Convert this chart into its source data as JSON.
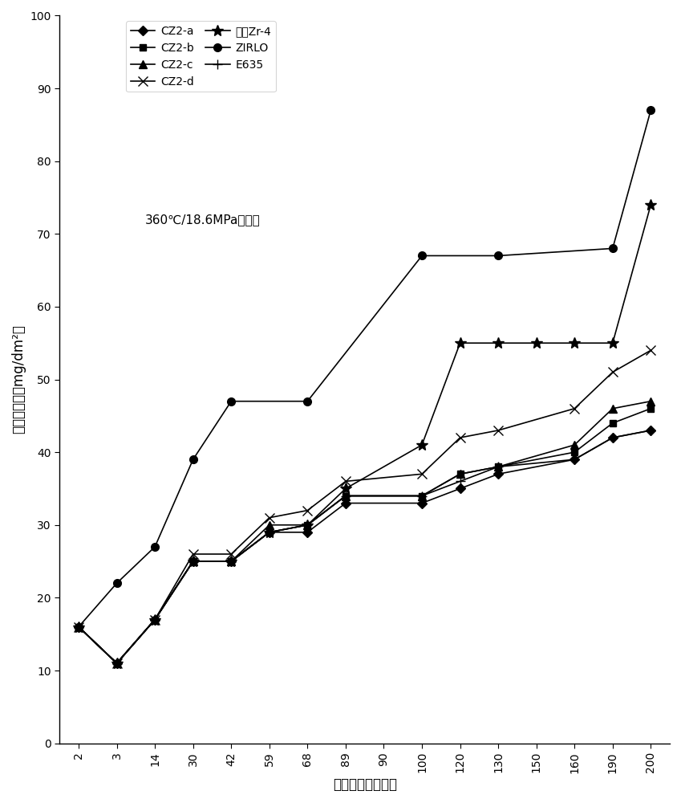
{
  "x_tick_labels": [
    "2",
    "3",
    "14",
    "30",
    "42",
    "59",
    "68",
    "89",
    "90",
    "100",
    "120",
    "130",
    "150",
    "160",
    "190",
    "200"
  ],
  "x_tick_values": [
    2,
    3,
    14,
    30,
    42,
    59,
    68,
    89,
    90,
    100,
    120,
    130,
    150,
    160,
    190,
    200
  ],
  "series": {
    "CZ2-a": {
      "x": [
        2,
        3,
        14,
        30,
        42,
        59,
        68,
        89,
        100,
        120,
        130,
        160,
        190,
        200
      ],
      "y": [
        16,
        11,
        17,
        25,
        25,
        29,
        29,
        33,
        33,
        35,
        37,
        39,
        42,
        43
      ],
      "marker": "D",
      "ms": 6
    },
    "CZ2-b": {
      "x": [
        2,
        3,
        14,
        30,
        42,
        59,
        68,
        89,
        100,
        120,
        130,
        160,
        190,
        200
      ],
      "y": [
        16,
        11,
        17,
        25,
        25,
        29,
        30,
        34,
        34,
        37,
        38,
        40,
        44,
        46
      ],
      "marker": "s",
      "ms": 6
    },
    "CZ2-c": {
      "x": [
        2,
        3,
        14,
        30,
        42,
        59,
        68,
        89,
        100,
        120,
        130,
        160,
        190,
        200
      ],
      "y": [
        16,
        11,
        17,
        25,
        25,
        30,
        30,
        34,
        34,
        37,
        38,
        41,
        46,
        47
      ],
      "marker": "^",
      "ms": 7
    },
    "CZ2-d": {
      "x": [
        2,
        3,
        14,
        30,
        42,
        59,
        68,
        89,
        100,
        120,
        130,
        160,
        190,
        200
      ],
      "y": [
        16,
        11,
        17,
        26,
        26,
        31,
        32,
        36,
        37,
        42,
        43,
        46,
        51,
        54
      ],
      "marker": "x",
      "ms": 8
    },
    "低锡Zr-4": {
      "x": [
        2,
        3,
        14,
        30,
        42,
        59,
        68,
        89,
        100,
        120,
        130,
        150,
        160,
        190,
        200
      ],
      "y": [
        16,
        11,
        17,
        25,
        25,
        29,
        30,
        35,
        41,
        55,
        55,
        55,
        55,
        55,
        74
      ],
      "marker": "*",
      "ms": 10
    },
    "ZIRLO": {
      "x": [
        2,
        3,
        14,
        30,
        42,
        68,
        100,
        130,
        190,
        200
      ],
      "y": [
        16,
        22,
        27,
        39,
        47,
        47,
        67,
        67,
        68,
        87
      ],
      "marker": "o",
      "ms": 7
    },
    "E635": {
      "x": [
        2,
        3,
        14,
        30,
        42,
        59,
        68,
        89,
        100,
        120,
        130,
        160,
        190,
        200
      ],
      "y": [
        16,
        11,
        17,
        25,
        25,
        29,
        30,
        34,
        34,
        36,
        38,
        39,
        42,
        43
      ],
      "marker": "+",
      "ms": 9
    }
  },
  "legend_order": [
    "CZ2-a",
    "CZ2-b",
    "CZ2-c",
    "CZ2-d",
    "低锡Zr-4",
    "ZIRLO",
    "E635"
  ],
  "xlabel": "腥蚀时间／（天）",
  "ylabel": "腥蚀增重／（mg/dm²）",
  "annotation": "360℃/18.6MPa，纯水",
  "ylim": [
    0,
    100
  ],
  "yticks": [
    0,
    10,
    20,
    30,
    40,
    50,
    60,
    70,
    80,
    90,
    100
  ]
}
